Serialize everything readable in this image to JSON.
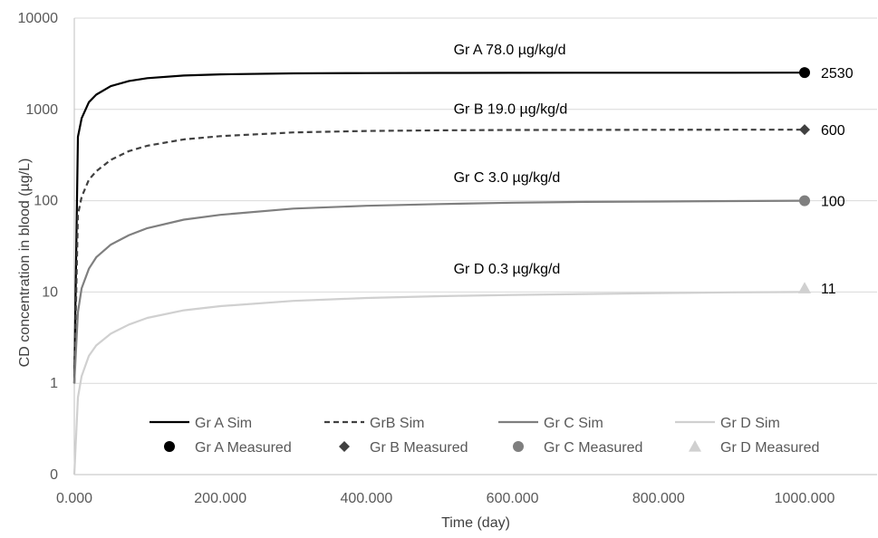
{
  "chart_data": {
    "type": "line",
    "title": "",
    "xlabel": "Time (day)",
    "ylabel": "CD concentration in blood (µg/L)",
    "xlim": [
      0,
      1000
    ],
    "ylim_display": [
      0,
      10000
    ],
    "y_scale": "log",
    "x_tick_labels": [
      "0.000",
      "200.000",
      "400.000",
      "600.000",
      "800.000",
      "1000.000"
    ],
    "x_ticks": [
      0,
      200,
      400,
      600,
      800,
      1000
    ],
    "y_tick_labels": [
      "0",
      "1",
      "10",
      "100",
      "1000",
      "10000"
    ],
    "y_ticks": [
      0.1,
      1,
      10,
      100,
      1000,
      10000
    ],
    "grid": "horizontal",
    "legend_position": "bottom-inside",
    "series": [
      {
        "name": "Gr A Sim",
        "style": "solid",
        "color": "#000000",
        "x": [
          0,
          5,
          10,
          20,
          30,
          50,
          75,
          100,
          150,
          200,
          300,
          400,
          500,
          600,
          700,
          800,
          900,
          1000
        ],
        "y": [
          1,
          500,
          800,
          1200,
          1450,
          1800,
          2050,
          2200,
          2350,
          2420,
          2480,
          2500,
          2510,
          2515,
          2520,
          2522,
          2525,
          2530
        ]
      },
      {
        "name": "GrB Sim",
        "style": "dashed",
        "color": "#404040",
        "x": [
          0,
          5,
          10,
          20,
          30,
          50,
          75,
          100,
          150,
          200,
          300,
          400,
          500,
          600,
          700,
          800,
          900,
          1000
        ],
        "y": [
          1,
          70,
          110,
          170,
          210,
          280,
          350,
          400,
          470,
          510,
          560,
          580,
          590,
          595,
          597,
          598,
          599,
          600
        ]
      },
      {
        "name": "Gr C Sim",
        "style": "solid",
        "color": "#7f7f7f",
        "x": [
          0,
          5,
          10,
          20,
          30,
          50,
          75,
          100,
          150,
          200,
          300,
          400,
          500,
          600,
          700,
          800,
          900,
          1000
        ],
        "y": [
          1,
          6,
          11,
          18,
          24,
          33,
          42,
          50,
          62,
          70,
          82,
          88,
          92,
          95,
          97,
          98,
          99,
          100
        ]
      },
      {
        "name": "Gr D Sim",
        "style": "solid",
        "color": "#d0d0d0",
        "x": [
          0,
          5,
          10,
          20,
          30,
          50,
          75,
          100,
          150,
          200,
          300,
          400,
          500,
          600,
          700,
          800,
          900,
          1000
        ],
        "y": [
          0.1,
          0.7,
          1.2,
          2,
          2.6,
          3.5,
          4.4,
          5.2,
          6.3,
          7,
          8,
          8.6,
          9,
          9.3,
          9.5,
          9.7,
          9.9,
          10
        ]
      },
      {
        "name": "Gr A Measured",
        "marker": "circle",
        "color": "#000000",
        "x": [
          1000
        ],
        "y": [
          2530
        ]
      },
      {
        "name": "Gr B Measured",
        "marker": "diamond",
        "color": "#404040",
        "x": [
          1000
        ],
        "y": [
          600
        ]
      },
      {
        "name": "Gr C Measured",
        "marker": "circle",
        "color": "#7f7f7f",
        "x": [
          1000
        ],
        "y": [
          100
        ]
      },
      {
        "name": "Gr D Measured",
        "marker": "triangle",
        "color": "#d0d0d0",
        "x": [
          1000
        ],
        "y": [
          11
        ]
      }
    ],
    "annotations": [
      {
        "text": "Gr A 78.0 µg/kg/d",
        "x": 600,
        "y": 4000
      },
      {
        "text": "Gr B 19.0 µg/kg/d",
        "x": 600,
        "y": 900
      },
      {
        "text": "Gr C  3.0 µg/kg/d",
        "x": 600,
        "y": 160
      },
      {
        "text": "Gr D  0.3 µg/kg/d",
        "x": 600,
        "y": 16
      }
    ],
    "point_labels": [
      {
        "text": "2530",
        "x": 1000,
        "y": 2530
      },
      {
        "text": "600",
        "x": 1000,
        "y": 600
      },
      {
        "text": "100",
        "x": 1000,
        "y": 100
      },
      {
        "text": "11",
        "x": 1000,
        "y": 11
      }
    ]
  }
}
